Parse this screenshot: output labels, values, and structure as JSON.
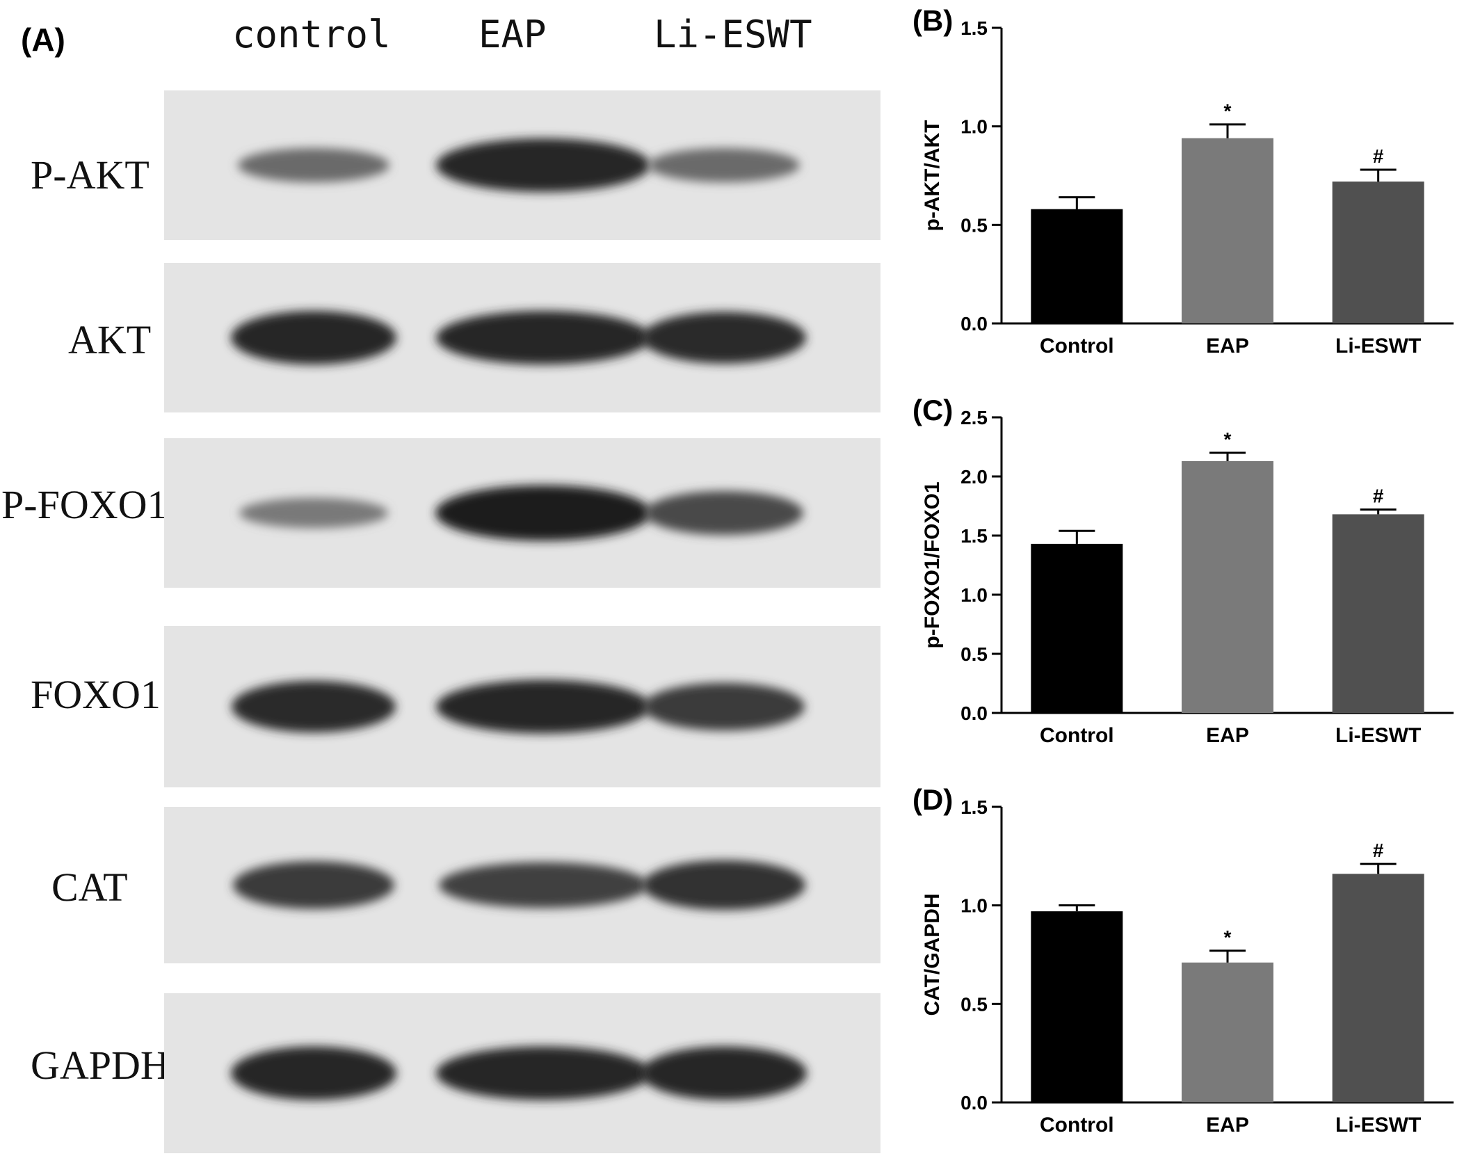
{
  "figure": {
    "panel_a_label": "(A)",
    "lanes": [
      "control",
      "EAP",
      "Li-ESWT"
    ],
    "blots": [
      {
        "label": "P-AKT",
        "intensity": [
          0.45,
          0.95,
          0.45
        ]
      },
      {
        "label": "AKT",
        "intensity": [
          0.95,
          0.95,
          0.9
        ]
      },
      {
        "label": "P-FOXO1",
        "intensity": [
          0.35,
          1.0,
          0.7
        ]
      },
      {
        "label": "FOXO1",
        "intensity": [
          0.9,
          0.95,
          0.8
        ]
      },
      {
        "label": "CAT",
        "intensity": [
          0.8,
          0.75,
          0.85
        ]
      },
      {
        "label": "GAPDH",
        "intensity": [
          0.95,
          0.95,
          0.95
        ]
      }
    ]
  },
  "chart_data": [
    {
      "type": "bar",
      "panel": "(B)",
      "categories": [
        "Control",
        "EAP",
        "Li-ESWT"
      ],
      "values": [
        0.58,
        0.94,
        0.72
      ],
      "errors": [
        0.06,
        0.07,
        0.06
      ],
      "markers": [
        "",
        "*",
        "#"
      ],
      "ylabel": "p-AKT/AKT",
      "ylim": [
        0,
        1.5
      ],
      "yticks": [
        0.0,
        0.5,
        1.0,
        1.5
      ],
      "ytick_labels": [
        "0.0",
        "0.5",
        "1.0",
        "1.5"
      ],
      "colors": [
        "#000000",
        "#7a7a7a",
        "#505050"
      ]
    },
    {
      "type": "bar",
      "panel": "(C)",
      "categories": [
        "Control",
        "EAP",
        "Li-ESWT"
      ],
      "values": [
        1.43,
        2.13,
        1.68
      ],
      "errors": [
        0.11,
        0.07,
        0.04
      ],
      "markers": [
        "",
        "*",
        "#"
      ],
      "ylabel": "p-FOXO1/FOXO1",
      "ylim": [
        0,
        2.5
      ],
      "yticks": [
        0.0,
        0.5,
        1.0,
        1.5,
        2.0,
        2.5
      ],
      "ytick_labels": [
        "0.0",
        "0.5",
        "1.0",
        "1.5",
        "2.0",
        "2.5"
      ],
      "colors": [
        "#000000",
        "#7a7a7a",
        "#505050"
      ]
    },
    {
      "type": "bar",
      "panel": "(D)",
      "categories": [
        "Control",
        "EAP",
        "Li-ESWT"
      ],
      "values": [
        0.97,
        0.71,
        1.16
      ],
      "errors": [
        0.03,
        0.06,
        0.05
      ],
      "markers": [
        "",
        "*",
        "#"
      ],
      "ylabel": "CAT/GAPDH",
      "ylim": [
        0,
        1.5
      ],
      "yticks": [
        0.0,
        0.5,
        1.0,
        1.5
      ],
      "ytick_labels": [
        "0.0",
        "0.5",
        "1.0",
        "1.5"
      ],
      "colors": [
        "#000000",
        "#7a7a7a",
        "#505050"
      ]
    }
  ]
}
